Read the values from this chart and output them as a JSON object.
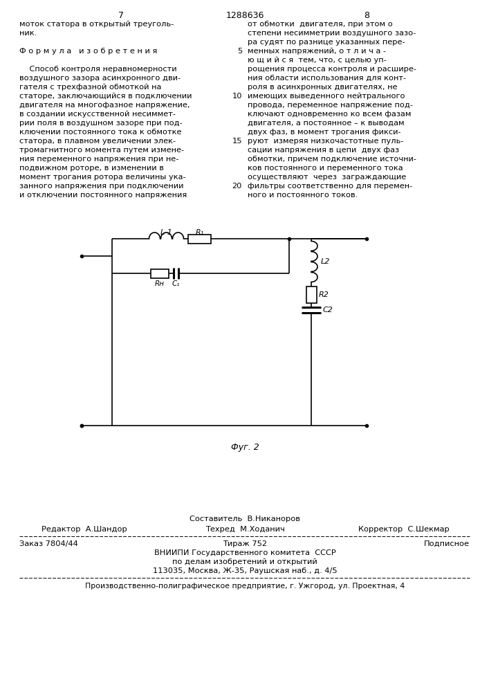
{
  "bg_color": "#ffffff",
  "text_color": "#000000",
  "page_num_left": "7",
  "page_num_center": "1288636",
  "page_num_right": "8",
  "col_left_lines": [
    "моток статора в открытый треуголь-",
    "ник.",
    "",
    "Ф о р м у л а   и з о б р е т е н и я",
    "",
    "    Способ контроля неравномерности",
    "воздушного зазора асинхронного дви-",
    "гателя с трехфазной обмоткой на",
    "статоре, заключающийся в подключении",
    "двигателя на многофазное напряжение,",
    "в создании искусственной несиммет-",
    "рии поля в воздушном зазоре при под-",
    "ключении постоянного тока к обмотке",
    "статора, в плавном увеличении элек-",
    "тромагнитного момента путем измене-",
    "ния переменного напряжения при не-",
    "подвижном роторе, в изменении в",
    "момент трогания ротора величины ука-",
    "занного напряжения при подключении",
    "и отключении постоянного напряжения"
  ],
  "col_right_lines": [
    "от обмотки  двигателя, при этом о",
    "степени несимметрии воздушного зазо-",
    "ра судят по разнице указанных пере-",
    "менных напряжений, о т л и ч а -",
    "ю щ и й с я  тем, что, с целью уп-",
    "рощения процесса контроля и расшире-",
    "ния области использования для конт-",
    "роля в асинхронных двигателях, не",
    "имеющих выведенного нейтрального",
    "провода, переменное напряжение под-",
    "ключают одновременно ко всем фазам",
    "двигателя, а постоянное – к выводам",
    "двух фаз, в момент трогания фикси-",
    "руют  измеряя низкочастотные пуль-",
    "сации напряжения в цепи  двух фаз",
    "обмотки, причем подключение источни-",
    "ков постоянного и переменного тока",
    "осуществляют  через  заграждающие",
    "фильтры соответственно для перемен-",
    "ного и постоянного токов."
  ],
  "line_numbers_rows": [
    3,
    8,
    13,
    18
  ],
  "line_numbers_vals": [
    "5",
    "10",
    "15",
    "20"
  ],
  "fig_label": "Фуг. 2",
  "footer_composer": "Составитель  В.Никаноров",
  "footer_editor": "Редактор  А.Шандор",
  "footer_techred": "Техред  М.Ходанич",
  "footer_corrector": "Корректор  С.Шекмар",
  "footer_order": "Заказ 7804/44",
  "footer_tirazh": "Тираж 752",
  "footer_podpisnoe": "Подписное",
  "footer_vniiipi": "ВНИИПИ Государственного комитета  СССР",
  "footer_po_delam": "по делам изобретений и открытий",
  "footer_address": "113035, Москва, Ж-35, Раушская наб., д. 4/5",
  "footer_factory": "Производственно-полиграфическое предприятие, г. Ужгород, ул. Проектная, 4"
}
